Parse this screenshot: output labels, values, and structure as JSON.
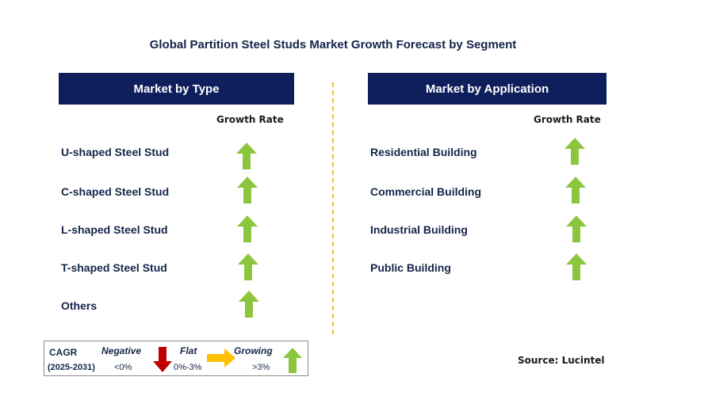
{
  "title": "Global Partition Steel Studs Market Growth Forecast by Segment",
  "left_panel": {
    "header": "Market by Type",
    "column_label": "Growth Rate",
    "rows": [
      {
        "label": "U-shaped Steel Stud",
        "trend": "growing"
      },
      {
        "label": "C-shaped Steel Stud",
        "trend": "growing"
      },
      {
        "label": "L-shaped Steel Stud",
        "trend": "growing"
      },
      {
        "label": "T-shaped Steel Stud",
        "trend": "growing"
      },
      {
        "label": "Others",
        "trend": "growing"
      }
    ]
  },
  "right_panel": {
    "header": "Market by Application",
    "column_label": "Growth Rate",
    "rows": [
      {
        "label": "Residential Building",
        "trend": "growing"
      },
      {
        "label": "Commercial Building",
        "trend": "growing"
      },
      {
        "label": "Industrial Building",
        "trend": "growing"
      },
      {
        "label": "Public Building",
        "trend": "growing"
      }
    ]
  },
  "legend": {
    "cagr_label": "CAGR",
    "period": "(2025-2031)",
    "negative": {
      "label": "Negative",
      "range": "<0%"
    },
    "flat": {
      "label": "Flat",
      "range": "0%-3%"
    },
    "growing": {
      "label": "Growing",
      "range": ">3%"
    }
  },
  "source": "Source: Lucintel",
  "colors": {
    "header_bg": "#0f1f5c",
    "growing": "#8cc63f",
    "negative": "#c00000",
    "flat": "#ffc000",
    "divider": "#f2b731"
  }
}
